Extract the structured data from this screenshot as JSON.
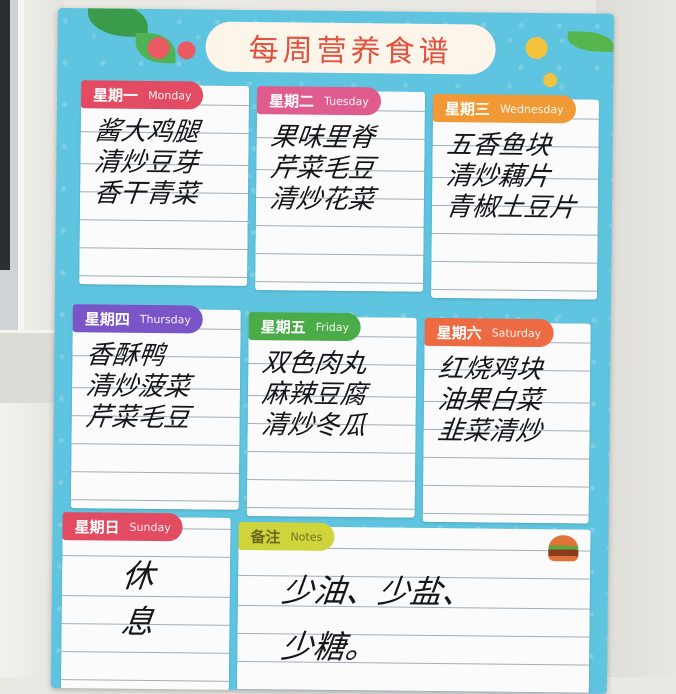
{
  "title": "每周营养食谱",
  "days": [
    {
      "cn": "星期一",
      "en": "Monday",
      "color": "#e24b62",
      "items": [
        "酱大鸡腿",
        "清炒豆芽",
        "香干青菜"
      ]
    },
    {
      "cn": "星期二",
      "en": "Tuesday",
      "color": "#e05c8f",
      "items": [
        "果味里脊",
        "芹菜毛豆",
        "清炒花菜"
      ]
    },
    {
      "cn": "星期三",
      "en": "Wednesday",
      "color": "#f19a35",
      "items": [
        "五香鱼块",
        "清炒藕片",
        "青椒土豆片"
      ]
    },
    {
      "cn": "星期四",
      "en": "Thursday",
      "color": "#7a55c7",
      "items": [
        "香酥鸭",
        "清炒菠菜",
        "芹菜毛豆"
      ]
    },
    {
      "cn": "星期五",
      "en": "Friday",
      "color": "#4aab49",
      "items": [
        "双色肉丸",
        "麻辣豆腐",
        "清炒冬瓜"
      ]
    },
    {
      "cn": "星期六",
      "en": "Saturday",
      "color": "#ee6a42",
      "items": [
        "红烧鸡块",
        "油果白菜",
        "韭菜清炒"
      ]
    },
    {
      "cn": "星期日",
      "en": "Sunday",
      "color": "#e24b62",
      "items": [
        "休",
        "息"
      ]
    }
  ],
  "notes": {
    "cn": "备注",
    "en": "Notes",
    "color": "#cfd43a",
    "lines": [
      "少油、少盐、",
      "少糖。"
    ]
  }
}
